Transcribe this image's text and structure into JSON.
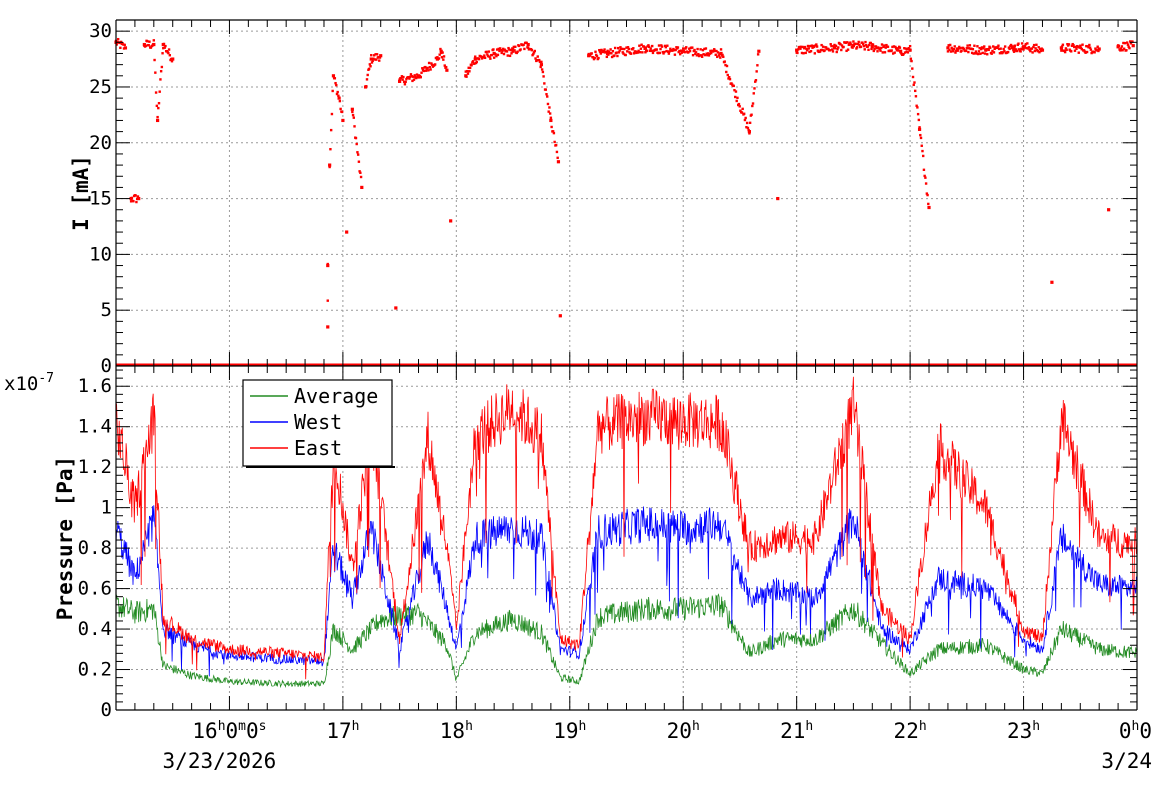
{
  "chart_data": [
    {
      "type": "scatter",
      "title": "",
      "xlabel": "",
      "ylabel": "I [mA]",
      "xlim": [
        "2026-03-23 15:00",
        "2026-03-24 00:00"
      ],
      "ylim": [
        0,
        31
      ],
      "yticks": [
        0,
        5,
        10,
        15,
        20,
        25,
        30
      ],
      "ytick_labels": [
        "0",
        "5",
        "10",
        "15",
        "20",
        "25",
        "30"
      ],
      "grid": true,
      "series": [
        {
          "color": "#ff0000",
          "points": [
            [
              "15:00",
              29
            ],
            [
              "15:05",
              28.5
            ],
            [
              "15:08",
              15
            ],
            [
              "15:12",
              15
            ],
            [
              "15:15",
              28.8
            ],
            [
              "15:20",
              28.8
            ],
            [
              "15:22",
              22
            ],
            [
              "15:25",
              28.8
            ],
            [
              "15:30",
              27.5
            ],
            [
              "16:52",
              9
            ],
            [
              "16:52",
              3.5
            ],
            [
              "16:53",
              18
            ],
            [
              "16:55",
              26
            ],
            [
              "16:58",
              24
            ],
            [
              "17:00",
              22
            ],
            [
              "17:02",
              12
            ],
            [
              "17:05",
              23
            ],
            [
              "17:10",
              16
            ],
            [
              "17:12",
              25
            ],
            [
              "17:15",
              27.5
            ],
            [
              "17:20",
              27.8
            ],
            [
              "17:28",
              5.2
            ],
            [
              "17:30",
              25.5
            ],
            [
              "17:40",
              26
            ],
            [
              "17:50",
              27.5
            ],
            [
              "17:52",
              28.2
            ],
            [
              "17:55",
              26.5
            ],
            [
              "17:57",
              13
            ],
            [
              "18:05",
              26
            ],
            [
              "18:10",
              27.5
            ],
            [
              "18:20",
              28
            ],
            [
              "18:30",
              28.2
            ],
            [
              "18:38",
              28.8
            ],
            [
              "18:45",
              27
            ],
            [
              "18:50",
              22
            ],
            [
              "18:54",
              18.3
            ],
            [
              "18:55",
              4.5
            ],
            [
              "19:10",
              27.8
            ],
            [
              "19:20",
              28
            ],
            [
              "19:40",
              28.5
            ],
            [
              "20:00",
              28.2
            ],
            [
              "20:20",
              28
            ],
            [
              "20:35",
              21
            ],
            [
              "20:40",
              28.2
            ],
            [
              "20:50",
              15
            ],
            [
              "21:00",
              28.3
            ],
            [
              "21:20",
              28.5
            ],
            [
              "21:30",
              28.7
            ],
            [
              "21:40",
              28.6
            ],
            [
              "21:55",
              28.2
            ],
            [
              "22:00",
              28.3
            ],
            [
              "22:05",
              21.2
            ],
            [
              "22:10",
              14.2
            ],
            [
              "22:20",
              28.5
            ],
            [
              "22:40",
              28.3
            ],
            [
              "22:55",
              28.5
            ],
            [
              "23:00",
              28.6
            ],
            [
              "23:10",
              28.3
            ],
            [
              "23:15",
              7.5
            ],
            [
              "23:20",
              28.5
            ],
            [
              "23:40",
              28.4
            ],
            [
              "23:45",
              14
            ],
            [
              "23:50",
              28.6
            ],
            [
              "23:58",
              28.7
            ]
          ]
        }
      ],
      "baseline": {
        "value": 0,
        "color": "#ff0000"
      }
    },
    {
      "type": "line",
      "title": "",
      "xlabel": "",
      "ylabel": "Pressure [Pa]",
      "yscale_label": "x10",
      "yscale_exponent": "-7",
      "xlim": [
        "2026-03-23 15:00",
        "2026-03-24 00:00"
      ],
      "ylim": [
        0,
        1.7
      ],
      "yticks": [
        0,
        0.2,
        0.4,
        0.6,
        0.8,
        1,
        1.2,
        1.4,
        1.6
      ],
      "ytick_labels": [
        "0",
        "0.2",
        "0.4",
        "0.6",
        "0.8",
        "1",
        "1.2",
        "1.4",
        "1.6"
      ],
      "grid": true,
      "legend": {
        "placement": "top-left"
      },
      "x_time_ticks": [
        {
          "time": "16:00",
          "label": "16",
          "sup": [
            "h",
            "m",
            "s"
          ],
          "parts": [
            "16",
            "0",
            "0"
          ]
        },
        {
          "time": "17:00",
          "label": "17",
          "sup": [
            "h"
          ],
          "parts": [
            "17"
          ]
        },
        {
          "time": "18:00",
          "label": "18",
          "sup": [
            "h"
          ],
          "parts": [
            "18"
          ]
        },
        {
          "time": "19:00",
          "label": "19",
          "sup": [
            "h"
          ],
          "parts": [
            "19"
          ]
        },
        {
          "time": "20:00",
          "label": "20",
          "sup": [
            "h"
          ],
          "parts": [
            "20"
          ]
        },
        {
          "time": "21:00",
          "label": "21",
          "sup": [
            "h"
          ],
          "parts": [
            "21"
          ]
        },
        {
          "time": "22:00",
          "label": "22",
          "sup": [
            "h"
          ],
          "parts": [
            "22"
          ]
        },
        {
          "time": "23:00",
          "label": "23",
          "sup": [
            "h"
          ],
          "parts": [
            "23"
          ]
        },
        {
          "time": "24:00",
          "label": "0",
          "sup": [
            "h",
            ""
          ],
          "parts": [
            "0",
            "0"
          ]
        }
      ],
      "date_labels": [
        {
          "time": "16:00",
          "text": "3/23/2026"
        },
        {
          "time": "24:00",
          "text": "3/24"
        }
      ],
      "series": [
        {
          "name": "Average",
          "color": "#228b22",
          "points": [
            [
              "15:00",
              0.52
            ],
            [
              "15:10",
              0.48
            ],
            [
              "15:20",
              0.5
            ],
            [
              "15:25",
              0.22
            ],
            [
              "15:40",
              0.17
            ],
            [
              "16:00",
              0.14
            ],
            [
              "16:30",
              0.13
            ],
            [
              "16:50",
              0.13
            ],
            [
              "16:55",
              0.4
            ],
            [
              "17:05",
              0.3
            ],
            [
              "17:20",
              0.45
            ],
            [
              "17:40",
              0.48
            ],
            [
              "17:55",
              0.32
            ],
            [
              "18:00",
              0.15
            ],
            [
              "18:10",
              0.38
            ],
            [
              "18:30",
              0.45
            ],
            [
              "18:45",
              0.38
            ],
            [
              "18:55",
              0.16
            ],
            [
              "19:05",
              0.14
            ],
            [
              "19:15",
              0.46
            ],
            [
              "19:40",
              0.5
            ],
            [
              "20:00",
              0.5
            ],
            [
              "20:20",
              0.52
            ],
            [
              "20:35",
              0.28
            ],
            [
              "20:50",
              0.35
            ],
            [
              "21:10",
              0.35
            ],
            [
              "21:30",
              0.5
            ],
            [
              "21:45",
              0.33
            ],
            [
              "22:00",
              0.18
            ],
            [
              "22:15",
              0.3
            ],
            [
              "22:40",
              0.32
            ],
            [
              "23:00",
              0.2
            ],
            [
              "23:10",
              0.18
            ],
            [
              "23:20",
              0.4
            ],
            [
              "23:40",
              0.3
            ],
            [
              "24:00",
              0.28
            ]
          ]
        },
        {
          "name": "West",
          "color": "#0000ff",
          "points": [
            [
              "15:00",
              0.9
            ],
            [
              "15:10",
              0.65
            ],
            [
              "15:20",
              0.95
            ],
            [
              "15:25",
              0.4
            ],
            [
              "15:40",
              0.32
            ],
            [
              "16:00",
              0.27
            ],
            [
              "16:30",
              0.25
            ],
            [
              "16:50",
              0.24
            ],
            [
              "16:55",
              0.8
            ],
            [
              "17:05",
              0.55
            ],
            [
              "17:15",
              0.9
            ],
            [
              "17:30",
              0.3
            ],
            [
              "17:45",
              0.85
            ],
            [
              "17:55",
              0.5
            ],
            [
              "18:00",
              0.3
            ],
            [
              "18:10",
              0.85
            ],
            [
              "18:30",
              0.9
            ],
            [
              "18:45",
              0.85
            ],
            [
              "18:55",
              0.3
            ],
            [
              "19:05",
              0.28
            ],
            [
              "19:15",
              0.88
            ],
            [
              "19:40",
              0.92
            ],
            [
              "20:00",
              0.9
            ],
            [
              "20:20",
              0.92
            ],
            [
              "20:35",
              0.55
            ],
            [
              "20:50",
              0.6
            ],
            [
              "21:10",
              0.55
            ],
            [
              "21:30",
              0.95
            ],
            [
              "21:45",
              0.4
            ],
            [
              "22:00",
              0.3
            ],
            [
              "22:15",
              0.65
            ],
            [
              "22:40",
              0.6
            ],
            [
              "23:00",
              0.35
            ],
            [
              "23:10",
              0.3
            ],
            [
              "23:20",
              0.85
            ],
            [
              "23:40",
              0.62
            ],
            [
              "24:00",
              0.6
            ]
          ]
        },
        {
          "name": "East",
          "color": "#ff0000",
          "points": [
            [
              "15:00",
              1.43
            ],
            [
              "15:10",
              1.0
            ],
            [
              "15:20",
              1.45
            ],
            [
              "15:25",
              0.45
            ],
            [
              "15:40",
              0.35
            ],
            [
              "16:00",
              0.3
            ],
            [
              "16:30",
              0.28
            ],
            [
              "16:50",
              0.26
            ],
            [
              "16:55",
              1.3
            ],
            [
              "17:05",
              0.7
            ],
            [
              "17:15",
              1.4
            ],
            [
              "17:30",
              0.35
            ],
            [
              "17:45",
              1.35
            ],
            [
              "17:55",
              0.8
            ],
            [
              "18:00",
              0.4
            ],
            [
              "18:10",
              1.35
            ],
            [
              "18:30",
              1.5
            ],
            [
              "18:45",
              1.35
            ],
            [
              "18:55",
              0.35
            ],
            [
              "19:05",
              0.32
            ],
            [
              "19:15",
              1.4
            ],
            [
              "19:40",
              1.45
            ],
            [
              "20:00",
              1.43
            ],
            [
              "20:20",
              1.42
            ],
            [
              "20:35",
              0.8
            ],
            [
              "20:50",
              0.85
            ],
            [
              "21:10",
              0.85
            ],
            [
              "21:30",
              1.5
            ],
            [
              "21:45",
              0.5
            ],
            [
              "22:00",
              0.35
            ],
            [
              "22:15",
              1.3
            ],
            [
              "22:40",
              1.0
            ],
            [
              "23:00",
              0.4
            ],
            [
              "23:10",
              0.35
            ],
            [
              "23:20",
              1.45
            ],
            [
              "23:40",
              0.85
            ],
            [
              "24:00",
              0.82
            ]
          ]
        }
      ]
    }
  ]
}
